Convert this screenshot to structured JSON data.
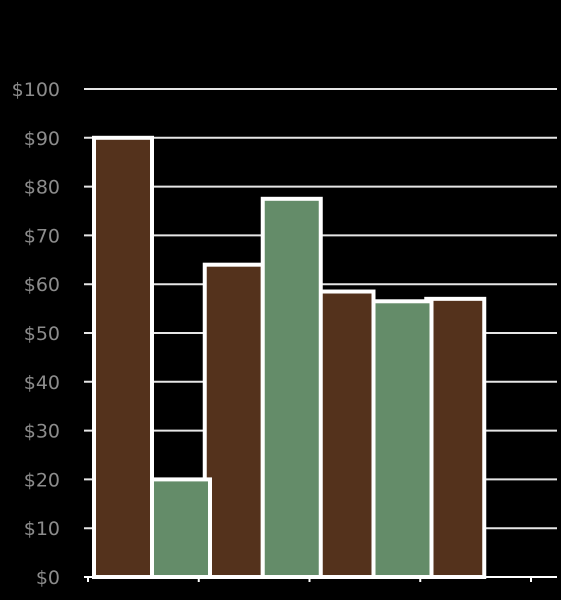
{
  "chart_data": {
    "type": "bar",
    "categories": [
      "",
      "",
      "",
      ""
    ],
    "series": [
      {
        "color": "#54321c",
        "values": [
          90,
          64,
          58.5,
          57
        ]
      },
      {
        "color": "#648c69",
        "values": [
          20,
          77.5,
          56.5,
          null
        ]
      }
    ],
    "ylim": [
      0,
      100
    ],
    "yticks": [
      0,
      10,
      20,
      30,
      40,
      50,
      60,
      70,
      80,
      90,
      100
    ],
    "ytick_labels": [
      "$0",
      "$10",
      "$20",
      "$30",
      "$40",
      "$50",
      "$60",
      "$70",
      "$80",
      "$90",
      "$100"
    ],
    "grid": true,
    "legend": "none",
    "background": "#000000",
    "grid_color": "#e6e6e6",
    "label_color": "#8c8c8c"
  }
}
